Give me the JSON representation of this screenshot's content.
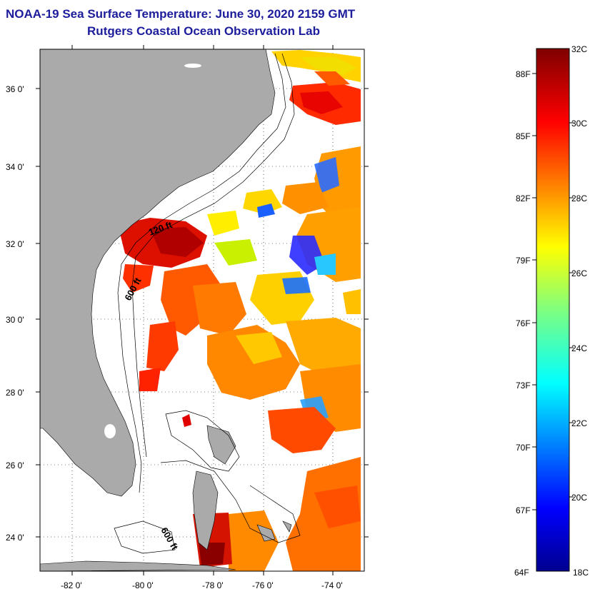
{
  "header": {
    "title": "NOAA-19 Sea Surface Temperature:  June 30, 2020 2159 GMT",
    "subtitle": "Rutgers Coastal Ocean Observation Lab"
  },
  "map": {
    "lat_ticks": [
      "36 0'",
      "34 0'",
      "32 0'",
      "30 0'",
      "28 0'",
      "26 0'",
      "24 0'"
    ],
    "lon_ticks": [
      "-82 0'",
      "-80 0'",
      "-78 0'",
      "-76 0'",
      "-74 0'"
    ],
    "isobath_labels": [
      "120 ft",
      "600 ft",
      "600 ft"
    ],
    "colors": {
      "land": "#aaaaaa",
      "ocean_nodata": "#ffffff"
    }
  },
  "colorbar": {
    "celsius": [
      "32C",
      "30C",
      "28C",
      "26C",
      "24C",
      "22C",
      "20C",
      "18C"
    ],
    "fahrenheit": [
      "88F",
      "85F",
      "82F",
      "79F",
      "76F",
      "73F",
      "70F",
      "67F",
      "64F"
    ],
    "range_c": [
      18,
      32
    ]
  }
}
